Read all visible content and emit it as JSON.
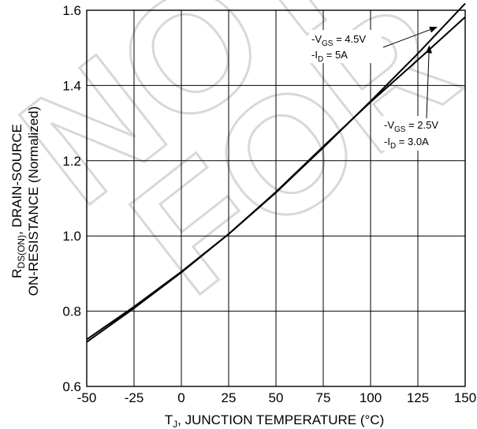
{
  "watermark": {
    "line1": "NOT",
    "line2": "FOR"
  },
  "chart_data": {
    "type": "line",
    "title": "",
    "xlabel": {
      "prefix": "T",
      "sub": "J",
      "rest": ", JUNCTION TEMPERATURE (°C)"
    },
    "ylabel": {
      "line1_prefix": "R",
      "line1_sub": "DS(ON)",
      "line1_rest": ", DRAIN-SOURCE",
      "line2": "ON-RESISTANCE (Normalized)"
    },
    "xlim": [
      -50,
      150
    ],
    "ylim": [
      0.6,
      1.6
    ],
    "x_ticks": [
      "-50",
      "-25",
      "0",
      "25",
      "50",
      "75",
      "100",
      "125",
      "150"
    ],
    "y_ticks": [
      "0.6",
      "0.8",
      "1.0",
      "1.2",
      "1.4",
      "1.6"
    ],
    "grid": true,
    "legend": "annotations",
    "series": [
      {
        "name": "-VGS = 4.5V, -ID = 5A",
        "x": [
          -50,
          -25,
          0,
          25,
          50,
          75,
          100,
          125,
          150
        ],
        "y": [
          0.725,
          0.812,
          0.905,
          1.005,
          1.115,
          1.235,
          1.358,
          1.485,
          1.618
        ]
      },
      {
        "name": "-VGS = 2.5V, -ID = 3.0A",
        "x": [
          -50,
          -25,
          0,
          25,
          50,
          75,
          100,
          125,
          150
        ],
        "y": [
          0.718,
          0.808,
          0.903,
          1.005,
          1.117,
          1.238,
          1.356,
          1.468,
          1.582
        ]
      }
    ],
    "annotations": [
      {
        "id": "vgs45",
        "vgs_prefix": "-V",
        "vgs_sub": "GS",
        "vgs_rest": " = 4.5V",
        "id_prefix": "-I",
        "id_sub": "D",
        "id_rest": " = 5A",
        "arrow_to": [
          135,
          1.555
        ]
      },
      {
        "id": "vgs25",
        "vgs_prefix": "-V",
        "vgs_sub": "GS",
        "vgs_rest": " = 2.5V",
        "id_prefix": "-I",
        "id_sub": "D",
        "id_rest": " = 3.0A",
        "arrow_to": [
          131,
          1.505
        ]
      }
    ]
  }
}
